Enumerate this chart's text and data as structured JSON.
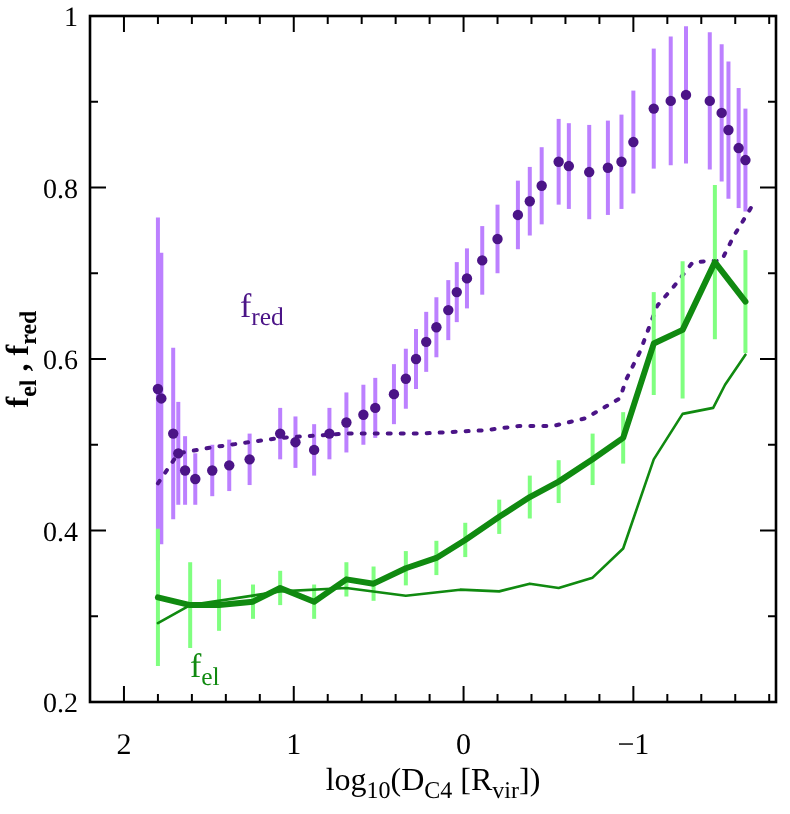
{
  "chart_data": {
    "type": "line",
    "xlabel": "log$_{10}$(D$_{C4}$ [R$_{vir}$])",
    "ylabel": "f$_{el}$ , f$_{red}$",
    "xlim": [
      2.2,
      -1.84
    ],
    "ylim": [
      0.2,
      1
    ],
    "xticks": [
      {
        "value": 2.2,
        "label": null
      },
      2,
      {
        "value": 1.8,
        "label": null
      },
      {
        "value": 1.6,
        "label": null
      },
      {
        "value": 1.4,
        "label": null
      },
      {
        "value": 1.2,
        "label": null
      },
      1,
      {
        "value": 0.8,
        "label": null
      },
      {
        "value": 0.6,
        "label": null
      },
      {
        "value": 0.4,
        "label": null
      },
      {
        "value": 0.2,
        "label": null
      },
      0,
      {
        "value": -0.2,
        "label": null
      },
      {
        "value": -0.4,
        "label": null
      },
      {
        "value": -0.6,
        "label": null
      },
      {
        "value": -0.8,
        "label": null
      },
      {
        "value": -1,
        "label": "−1"
      },
      {
        "value": -1.2,
        "label": null
      },
      {
        "value": -1.4,
        "label": null
      },
      {
        "value": -1.6,
        "label": null
      },
      {
        "value": -1.8,
        "label": null
      }
    ],
    "yticks": [
      0.2,
      {
        "value": 0.3,
        "label": null
      },
      0.4,
      {
        "value": 0.5,
        "label": null
      },
      0.6,
      {
        "value": 0.7,
        "label": null
      },
      0.8,
      {
        "value": 0.9,
        "label": null
      },
      1
    ],
    "grid": false,
    "legend": false,
    "series": [
      {
        "type": "scatter",
        "name": "f$_{red}$",
        "marker": "circle",
        "color": "#4b1487",
        "x": [
          1.8,
          1.78,
          1.71,
          1.68,
          1.64,
          1.58,
          1.48,
          1.38,
          1.26,
          1.08,
          0.99,
          0.88,
          0.79,
          0.69,
          0.59,
          0.52,
          0.41,
          0.34,
          0.28,
          0.22,
          0.16,
          0.09,
          0.04,
          -0.02,
          -0.11,
          -0.2,
          -0.32,
          -0.39,
          -0.46,
          -0.56,
          -0.62,
          -0.74,
          -0.85,
          -0.93,
          -1.0,
          -1.12,
          -1.22,
          -1.31,
          -1.45,
          -1.52,
          -1.56,
          -1.62,
          -1.66
        ],
        "values": [
          0.565,
          0.554,
          0.513,
          0.49,
          0.47,
          0.46,
          0.47,
          0.476,
          0.483,
          0.513,
          0.503,
          0.494,
          0.513,
          0.526,
          0.535,
          0.543,
          0.559,
          0.577,
          0.6,
          0.62,
          0.637,
          0.657,
          0.678,
          0.694,
          0.715,
          0.74,
          0.768,
          0.784,
          0.802,
          0.83,
          0.825,
          0.818,
          0.823,
          0.83,
          0.853,
          0.892,
          0.901,
          0.908,
          0.901,
          0.887,
          0.867,
          0.846,
          0.832
        ],
        "errors": [
          0.2,
          0.17,
          0.1,
          0.06,
          0.04,
          0.03,
          0.03,
          0.03,
          0.03,
          0.03,
          0.03,
          0.03,
          0.03,
          0.035,
          0.035,
          0.035,
          0.035,
          0.035,
          0.035,
          0.035,
          0.035,
          0.035,
          0.035,
          0.035,
          0.04,
          0.04,
          0.04,
          0.04,
          0.045,
          0.05,
          0.05,
          0.055,
          0.055,
          0.055,
          0.06,
          0.07,
          0.075,
          0.08,
          0.08,
          0.08,
          0.08,
          0.07,
          0.06
        ]
      },
      {
        "line_style": "dotted",
        "color": "#4b1487",
        "x": [
          1.8,
          1.68,
          1.48,
          1.08,
          0.69,
          0.26,
          -0.13,
          -0.33,
          -0.53,
          -0.72,
          -0.92,
          -0.96,
          -1.04,
          -1.14,
          -1.24,
          -1.35,
          -1.52,
          -1.59,
          -1.71
        ],
        "values": [
          0.455,
          0.49,
          0.497,
          0.508,
          0.513,
          0.513,
          0.517,
          0.522,
          0.522,
          0.531,
          0.554,
          0.577,
          0.609,
          0.662,
          0.685,
          0.713,
          0.715,
          0.743,
          0.782
        ]
      },
      {
        "name": "f$_{el}$",
        "line_style": "solid",
        "color": "#108a10",
        "x": [
          1.8,
          1.61,
          1.44,
          1.24,
          1.08,
          0.88,
          0.69,
          0.53,
          0.34,
          0.16,
          -0.01,
          -0.21,
          -0.39,
          -0.56,
          -0.76,
          -0.94,
          -1.12,
          -1.29,
          -1.48,
          -1.66
        ],
        "values": [
          0.322,
          0.313,
          0.313,
          0.317,
          0.333,
          0.317,
          0.343,
          0.338,
          0.356,
          0.368,
          0.389,
          0.416,
          0.439,
          0.457,
          0.483,
          0.508,
          0.618,
          0.634,
          0.713,
          0.667
        ],
        "errors": [
          0.08,
          0.05,
          0.03,
          0.02,
          0.02,
          0.02,
          0.02,
          0.02,
          0.02,
          0.02,
          0.02,
          0.02,
          0.025,
          0.025,
          0.03,
          0.03,
          0.06,
          0.08,
          0.09,
          0.06
        ]
      },
      {
        "line_style": "solid",
        "color": "#108a10",
        "x": [
          1.8,
          1.61,
          1.08,
          0.69,
          0.34,
          0.02,
          -0.21,
          -0.39,
          -0.56,
          -0.76,
          -0.94,
          -1.12,
          -1.29,
          -1.47,
          -1.54,
          -1.66
        ],
        "values": [
          0.292,
          0.313,
          0.329,
          0.333,
          0.324,
          0.331,
          0.329,
          0.338,
          0.333,
          0.345,
          0.379,
          0.483,
          0.536,
          0.543,
          0.57,
          0.605
        ]
      }
    ]
  }
}
